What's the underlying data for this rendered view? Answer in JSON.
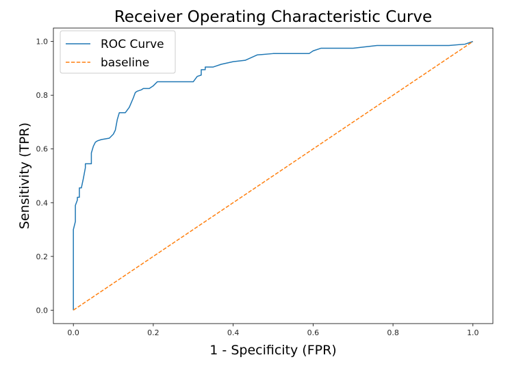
{
  "chart_data": {
    "type": "line",
    "title": "Receiver Operating Characteristic Curve",
    "xlabel": "1 - Specificity (FPR)",
    "ylabel": "Sensitivity (TPR)",
    "xlim": [
      -0.05,
      1.05
    ],
    "ylim": [
      -0.05,
      1.05
    ],
    "xticks": [
      0.0,
      0.2,
      0.4,
      0.6,
      0.8,
      1.0
    ],
    "yticks": [
      0.0,
      0.2,
      0.4,
      0.6,
      0.8,
      1.0
    ],
    "xtick_labels": [
      "0.0",
      "0.2",
      "0.4",
      "0.6",
      "0.8",
      "1.0"
    ],
    "ytick_labels": [
      "0.0",
      "0.2",
      "0.4",
      "0.6",
      "0.8",
      "1.0"
    ],
    "legend_position": "top-left",
    "grid": false,
    "series": [
      {
        "name": "ROC Curve",
        "color": "#1f77b4",
        "style": "solid",
        "x": [
          0.0,
          0.0,
          0.005,
          0.005,
          0.01,
          0.01,
          0.015,
          0.015,
          0.02,
          0.025,
          0.03,
          0.03,
          0.04,
          0.045,
          0.045,
          0.05,
          0.055,
          0.06,
          0.07,
          0.09,
          0.1,
          0.105,
          0.11,
          0.115,
          0.125,
          0.13,
          0.135,
          0.14,
          0.15,
          0.155,
          0.16,
          0.17,
          0.175,
          0.19,
          0.2,
          0.21,
          0.22,
          0.3,
          0.31,
          0.32,
          0.32,
          0.33,
          0.33,
          0.35,
          0.37,
          0.4,
          0.43,
          0.46,
          0.5,
          0.55,
          0.59,
          0.6,
          0.62,
          0.7,
          0.76,
          0.8,
          0.94,
          0.98,
          1.0
        ],
        "y": [
          0.0,
          0.3,
          0.33,
          0.39,
          0.41,
          0.42,
          0.42,
          0.455,
          0.455,
          0.49,
          0.53,
          0.545,
          0.545,
          0.545,
          0.585,
          0.61,
          0.625,
          0.63,
          0.635,
          0.64,
          0.655,
          0.67,
          0.71,
          0.735,
          0.735,
          0.735,
          0.745,
          0.755,
          0.79,
          0.81,
          0.815,
          0.82,
          0.825,
          0.825,
          0.835,
          0.85,
          0.85,
          0.85,
          0.87,
          0.875,
          0.895,
          0.895,
          0.905,
          0.905,
          0.915,
          0.925,
          0.93,
          0.95,
          0.955,
          0.955,
          0.955,
          0.965,
          0.975,
          0.975,
          0.985,
          0.985,
          0.985,
          0.99,
          1.0
        ]
      },
      {
        "name": "baseline",
        "color": "#ff7f0e",
        "style": "dashed",
        "x": [
          0.0,
          1.0
        ],
        "y": [
          0.0,
          1.0
        ]
      }
    ]
  }
}
